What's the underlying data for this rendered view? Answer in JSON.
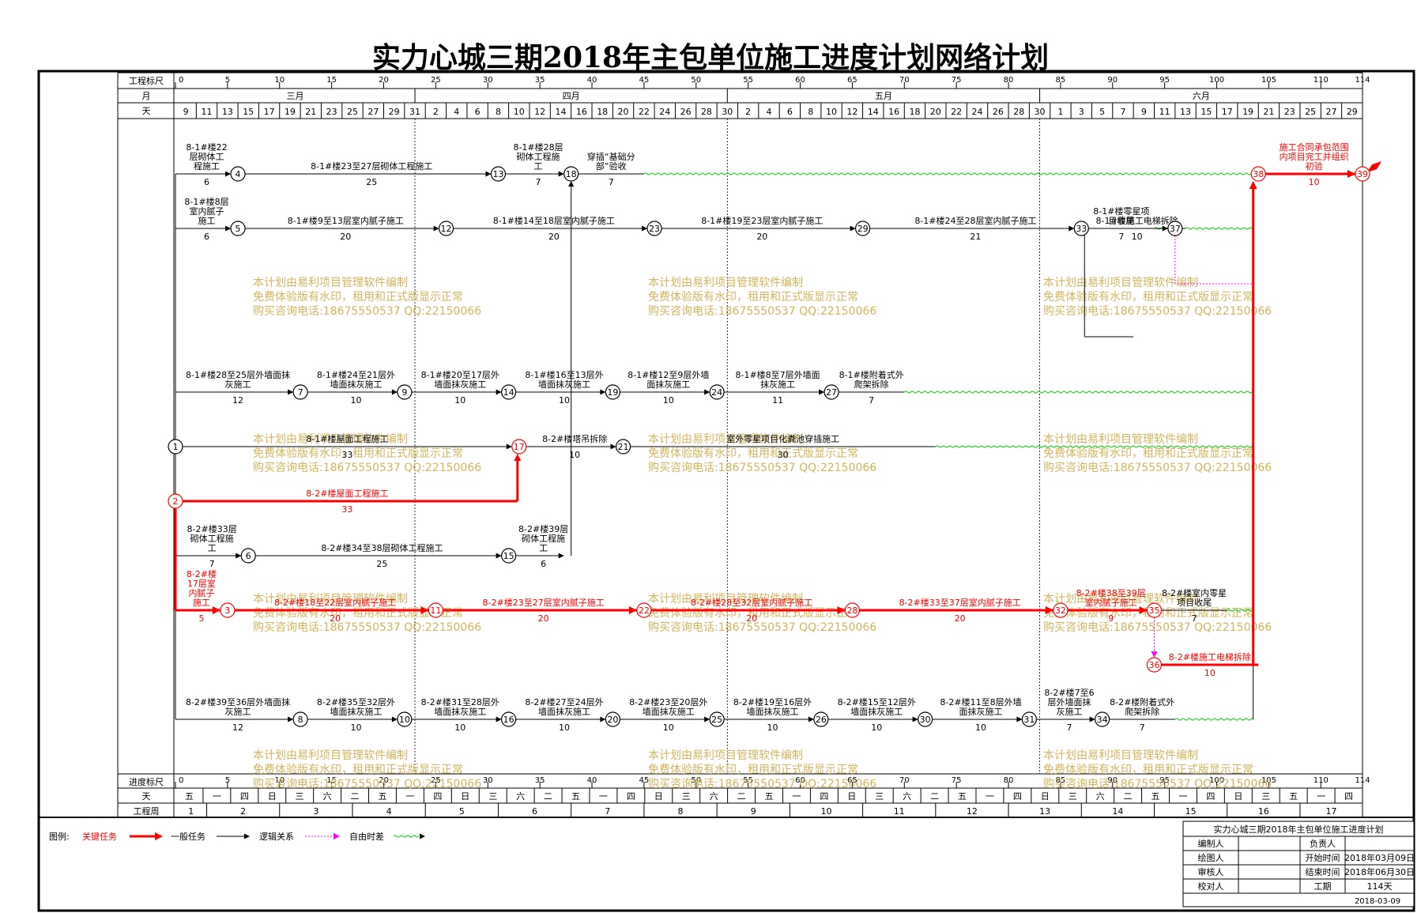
{
  "title": "实力心城三期2018年主包单位施工进度计划网络计划",
  "header": {
    "ruler_label": "工程标尺",
    "month_label": "月",
    "day_label": "天",
    "progress_label": "进度标尺",
    "week_label": "工程周",
    "ruler_ticks": [
      "0",
      "5",
      "10",
      "15",
      "20",
      "25",
      "30",
      "35",
      "40",
      "45",
      "50",
      "55",
      "60",
      "65",
      "70",
      "75",
      "80",
      "85",
      "90",
      "95",
      "100",
      "105",
      "110",
      "114"
    ],
    "months": [
      "三月",
      "四月",
      "五月",
      "六月"
    ],
    "days": [
      "9",
      "11",
      "13",
      "15",
      "17",
      "19",
      "21",
      "23",
      "25",
      "27",
      "29",
      "31",
      "2",
      "4",
      "6",
      "8",
      "10",
      "12",
      "14",
      "16",
      "18",
      "20",
      "22",
      "24",
      "26",
      "28",
      "30",
      "2",
      "4",
      "6",
      "8",
      "10",
      "12",
      "14",
      "16",
      "18",
      "20",
      "22",
      "24",
      "26",
      "28",
      "30",
      "1",
      "3",
      "5",
      "7",
      "9",
      "11",
      "13",
      "15",
      "17",
      "19",
      "21",
      "23",
      "25",
      "27",
      "29"
    ],
    "weekdays": [
      "五",
      "一",
      "四",
      "日",
      "三",
      "六",
      "二",
      "五",
      "一",
      "四",
      "日",
      "三",
      "六",
      "二",
      "五",
      "一",
      "四",
      "日",
      "三",
      "六",
      "二",
      "五",
      "一",
      "四",
      "日",
      "三",
      "六",
      "二",
      "五",
      "一",
      "四",
      "日",
      "三",
      "六",
      "二",
      "五",
      "一",
      "四",
      "日",
      "三",
      "五",
      "一",
      "四"
    ],
    "weeks": [
      "1",
      "2",
      "3",
      "4",
      "5",
      "6",
      "7",
      "8",
      "9",
      "10",
      "11",
      "12",
      "13",
      "14",
      "15",
      "16",
      "17"
    ]
  },
  "watermark": [
    "本计划由易利项目管理软件编制",
    "免费体验版有水印，租用和正式版显示正常",
    "购买咨询电话:18675550537 QQ:22150066"
  ],
  "legend": {
    "label": "图例:",
    "critical": "关键任务",
    "normal": "一般任务",
    "logic": "逻辑关系",
    "float": "自由时差"
  },
  "info_table": {
    "title": "实力心城三期2018年主包单位施工进度计划",
    "rows": [
      [
        "编制人",
        "",
        "负责人",
        ""
      ],
      [
        "绘图人",
        "",
        "开始时间",
        "2018年03月09日"
      ],
      [
        "审核人",
        "",
        "结束时间",
        "2018年06月30日"
      ],
      [
        "校对人",
        "",
        "工期",
        "114天"
      ]
    ],
    "date": "2018-03-09"
  },
  "colors": {
    "critical": "#ff0000",
    "normal": "#000000",
    "float": "#00cc00",
    "logic": "#ff00ff",
    "watermark": "#d4b45a"
  },
  "nodes": [
    {
      "id": "1",
      "t": 0,
      "row": 6,
      "critical": false
    },
    {
      "id": "2",
      "t": 0,
      "row": 7,
      "critical": true
    },
    {
      "id": "3",
      "t": 5,
      "row": 9,
      "critical": true
    },
    {
      "id": "4",
      "t": 6,
      "row": 1,
      "critical": false
    },
    {
      "id": "5",
      "t": 6,
      "row": 2,
      "critical": false
    },
    {
      "id": "6",
      "t": 7,
      "row": 8,
      "critical": false
    },
    {
      "id": "7",
      "t": 12,
      "row": 5,
      "critical": false
    },
    {
      "id": "8",
      "t": 12,
      "row": 11,
      "critical": false
    },
    {
      "id": "9",
      "t": 22,
      "row": 5,
      "critical": false
    },
    {
      "id": "10",
      "t": 22,
      "row": 11,
      "critical": false
    },
    {
      "id": "11",
      "t": 25,
      "row": 9,
      "critical": true
    },
    {
      "id": "12",
      "t": 26,
      "row": 2,
      "critical": false
    },
    {
      "id": "13",
      "t": 31,
      "row": 1,
      "critical": false
    },
    {
      "id": "14",
      "t": 32,
      "row": 5,
      "critical": false
    },
    {
      "id": "15",
      "t": 32,
      "row": 8,
      "critical": false
    },
    {
      "id": "16",
      "t": 32,
      "row": 11,
      "critical": false
    },
    {
      "id": "17",
      "t": 33,
      "row": 6,
      "critical": true
    },
    {
      "id": "18",
      "t": 38,
      "row": 1,
      "critical": false
    },
    {
      "id": "19",
      "t": 42,
      "row": 5,
      "critical": false
    },
    {
      "id": "20",
      "t": 42,
      "row": 11,
      "critical": false
    },
    {
      "id": "21",
      "t": 43,
      "row": 6,
      "critical": false
    },
    {
      "id": "22",
      "t": 45,
      "row": 9,
      "critical": true
    },
    {
      "id": "23",
      "t": 46,
      "row": 2,
      "critical": false
    },
    {
      "id": "24",
      "t": 52,
      "row": 5,
      "critical": false
    },
    {
      "id": "25",
      "t": 52,
      "row": 11,
      "critical": false
    },
    {
      "id": "26",
      "t": 62,
      "row": 11,
      "critical": false
    },
    {
      "id": "27",
      "t": 63,
      "row": 5,
      "critical": false
    },
    {
      "id": "28",
      "t": 65,
      "row": 9,
      "critical": true
    },
    {
      "id": "29",
      "t": 66,
      "row": 2,
      "critical": false
    },
    {
      "id": "30",
      "t": 72,
      "row": 11,
      "critical": false
    },
    {
      "id": "31",
      "t": 82,
      "row": 11,
      "critical": false
    },
    {
      "id": "32",
      "t": 85,
      "row": 9,
      "critical": true
    },
    {
      "id": "33",
      "t": 87,
      "row": 2,
      "critical": false
    },
    {
      "id": "34",
      "t": 89,
      "row": 11,
      "critical": false
    },
    {
      "id": "35",
      "t": 94,
      "row": 9,
      "critical": true
    },
    {
      "id": "36",
      "t": 94,
      "row": 10,
      "critical": true
    },
    {
      "id": "37",
      "t": 96,
      "row": 2,
      "critical": false
    },
    {
      "id": "38",
      "t": 104,
      "row": 1,
      "critical": true
    },
    {
      "id": "39",
      "t": 114,
      "row": 1,
      "critical": true
    }
  ],
  "tasks": [
    {
      "from": "1",
      "to": "4",
      "name": "8-1#楼22\n层砌体工\n程施工",
      "dur": "6",
      "critical": false,
      "pos": "left"
    },
    {
      "from": "4",
      "to": "13",
      "name": "8-1#楼23至27层砌体工程施工",
      "dur": "25",
      "critical": false
    },
    {
      "from": "13",
      "to": "18",
      "name": "8-1#楼28层\n砌体工程施\n工",
      "dur": "7",
      "critical": false,
      "pos": "left"
    },
    {
      "from": "18",
      "to": "38",
      "name": "穿插“基础分\n部”验收",
      "dur": "7",
      "critical": false,
      "end": 45,
      "pos": "left"
    },
    {
      "from": "1",
      "to": "5",
      "name": "8-1#楼8层\n室内腻子\n施工",
      "dur": "6",
      "critical": false,
      "pos": "left"
    },
    {
      "from": "5",
      "to": "12",
      "name": "8-1#楼9至13层室内腻子施工",
      "dur": "20",
      "critical": false
    },
    {
      "from": "12",
      "to": "23",
      "name": "8-1#楼14至18层室内腻子施工",
      "dur": "20",
      "critical": false
    },
    {
      "from": "23",
      "to": "29",
      "name": "8-1#楼19至23层室内腻子施工",
      "dur": "20",
      "critical": false
    },
    {
      "from": "29",
      "to": "33",
      "name": "8-1#楼24至28层室内腻子施工",
      "dur": "21",
      "critical": false
    },
    {
      "from": "33",
      "to": "37",
      "name": "8-1#楼零星项\n目收尾",
      "dur": "7",
      "critical": false,
      "end": 94
    },
    {
      "from": "1",
      "to": "7",
      "name": "8-1#楼28至25层外墙面抹\n灰施工",
      "dur": "12",
      "critical": false
    },
    {
      "from": "7",
      "to": "9",
      "name": "8-1#楼24至21层外\n墙面抹灰施工",
      "dur": "10",
      "critical": false
    },
    {
      "from": "9",
      "to": "14",
      "name": "8-1#楼20至17层外\n墙面抹灰施工",
      "dur": "10",
      "critical": false
    },
    {
      "from": "14",
      "to": "19",
      "name": "8-1#楼16至13层外\n墙面抹灰施工",
      "dur": "10",
      "critical": false
    },
    {
      "from": "19",
      "to": "24",
      "name": "8-1#楼12至9层外墙\n面抹灰施工",
      "dur": "10",
      "critical": false
    },
    {
      "from": "24",
      "to": "27",
      "name": "8-1#楼8至7层外墙面\n抹灰施工",
      "dur": "11",
      "critical": false
    },
    {
      "from": "27",
      "to": "38",
      "name": "8-1#楼附着式外\n爬架拆除",
      "dur": "7",
      "critical": false,
      "end": 70,
      "endrow": 5
    },
    {
      "from": "1",
      "to": "17",
      "name": "8-1#楼屋面工程施工",
      "dur": "33",
      "critical": false
    },
    {
      "from": "17",
      "to": "21",
      "name": "8-2#楼塔吊拆除",
      "dur": "10",
      "critical": false
    },
    {
      "from": "21",
      "to": "38",
      "name": "室外零星项目化粪池穿插施工",
      "dur": "30",
      "critical": false,
      "end": 73,
      "endrow": 6
    },
    {
      "from": "2",
      "to": "17",
      "name": "8-2#楼屋面工程施工",
      "dur": "33",
      "critical": true
    },
    {
      "from": "2",
      "to": "6",
      "name": "8-2#楼33层\n砌体工程施\n工",
      "dur": "7",
      "critical": false,
      "pos": "left"
    },
    {
      "from": "6",
      "to": "15",
      "name": "8-2#楼34至38层砌体工程施工",
      "dur": "25",
      "critical": false
    },
    {
      "from": "15",
      "to": "18",
      "name": "8-2#楼39层\n砌体工程施\n工",
      "dur": "6",
      "critical": false,
      "pos": "left"
    },
    {
      "from": "2",
      "to": "3",
      "name": "8-2#楼\n17层室\n内腻子\n施工",
      "dur": "5",
      "critical": true,
      "pos": "left"
    },
    {
      "from": "3",
      "to": "11",
      "name": "8-2#楼18至22层室内腻子施工",
      "dur": "20",
      "critical": true
    },
    {
      "from": "11",
      "to": "22",
      "name": "8-2#楼23至27层室内腻子施工",
      "dur": "20",
      "critical": true
    },
    {
      "from": "22",
      "to": "28",
      "name": "8-2#楼28至32层室内腻子施工",
      "dur": "20",
      "critical": true
    },
    {
      "from": "28",
      "to": "32",
      "name": "8-2#楼33至37层室内腻子施工",
      "dur": "20",
      "critical": true
    },
    {
      "from": "32",
      "to": "35",
      "name": "8-2#楼38至39层\n室内腻子施工",
      "dur": "9",
      "critical": true
    },
    {
      "from": "35",
      "to": "38",
      "name": "8-2#楼室内零星\n项目收尾",
      "dur": "7",
      "critical": false,
      "end": 101,
      "endrow": 9
    },
    {
      "from": "36",
      "to": "38",
      "name": "8-2#楼施工电梯拆除",
      "dur": "10",
      "critical": true,
      "end": 104,
      "endrow": 10
    },
    {
      "from": "1",
      "to": "8",
      "name": "8-2#楼39至36层外墙面抹\n灰施工",
      "dur": "12",
      "critical": false
    },
    {
      "from": "8",
      "to": "10",
      "name": "8-2#楼35至32层外\n墙面抹灰施工",
      "dur": "10",
      "critical": false
    },
    {
      "from": "10",
      "to": "16",
      "name": "8-2#楼31至28层外\n墙面抹灰施工",
      "dur": "10",
      "critical": false
    },
    {
      "from": "16",
      "to": "20",
      "name": "8-2#楼27至24层外\n墙面抹灰施工",
      "dur": "10",
      "critical": false
    },
    {
      "from": "20",
      "to": "25",
      "name": "8-2#楼23至20层外\n墙面抹灰施工",
      "dur": "10",
      "critical": false
    },
    {
      "from": "25",
      "to": "26",
      "name": "8-2#楼19至16层外\n墙面抹灰施工",
      "dur": "10",
      "critical": false
    },
    {
      "from": "26",
      "to": "30",
      "name": "8-2#楼15至12层外\n墙面抹灰施工",
      "dur": "10",
      "critical": false
    },
    {
      "from": "30",
      "to": "31",
      "name": "8-2#楼11至8层外墙\n面抹灰施工",
      "dur": "10",
      "critical": false
    },
    {
      "from": "31",
      "to": "34",
      "name": "8-2#楼7至6\n层外墙面抹\n灰施工",
      "dur": "7",
      "critical": false,
      "pos": "left"
    },
    {
      "from": "34",
      "to": "38",
      "name": "8-2#楼附着式外\n爬架拆除",
      "dur": "7",
      "critical": false,
      "end": 96,
      "endrow": 11
    },
    {
      "from": "33",
      "to": "38",
      "name": "8-1#楼施工电梯拆除",
      "dur": "10",
      "critical": false,
      "end": 97,
      "endrow": 3
    },
    {
      "from": "38",
      "to": "39",
      "name": "施工合同承包范围\n内项目完工并组织\n初验",
      "dur": "10",
      "critical": true
    }
  ]
}
